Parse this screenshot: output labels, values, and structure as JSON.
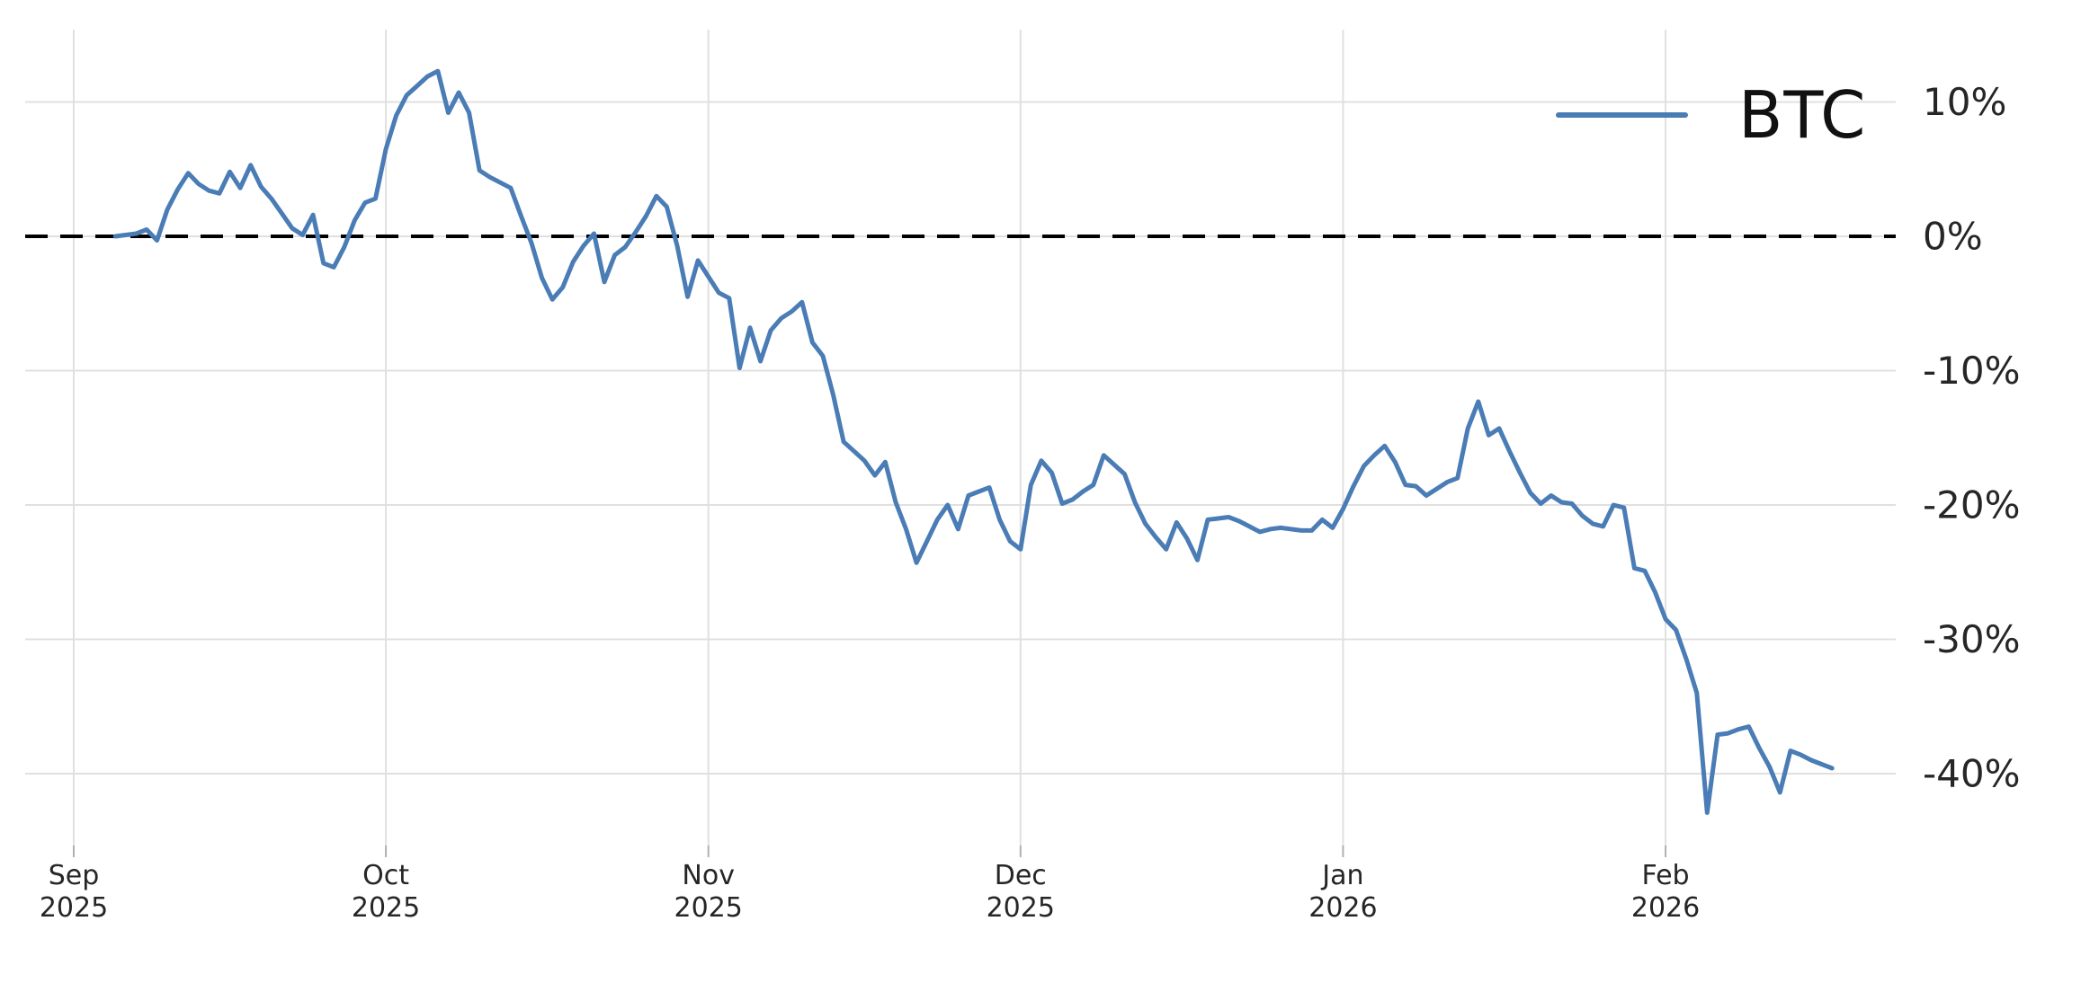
{
  "page": {
    "background": "#ffffff"
  },
  "legend": {
    "label": "BTC",
    "line_color": "#4a7cb5"
  },
  "axes": {
    "x_ticks": [
      {
        "date": "2025-09-01",
        "line1": "Sep",
        "line2": "2025"
      },
      {
        "date": "2025-10-01",
        "line1": "Oct",
        "line2": "2025"
      },
      {
        "date": "2025-11-01",
        "line1": "Nov",
        "line2": "2025"
      },
      {
        "date": "2025-12-01",
        "line1": "Dec",
        "line2": "2025"
      },
      {
        "date": "2026-01-01",
        "line1": "Jan",
        "line2": "2026"
      },
      {
        "date": "2026-02-01",
        "line1": "Feb",
        "line2": "2026"
      }
    ],
    "y_ticks": [
      {
        "label": "10%",
        "value": 10
      },
      {
        "label": "0%",
        "value": 0
      },
      {
        "label": "-10%",
        "value": -10
      },
      {
        "label": "-20%",
        "value": -20
      },
      {
        "label": "-30%",
        "value": -30
      },
      {
        "label": "-40%",
        "value": -40
      }
    ],
    "grid_color": "#e0e0e0",
    "tick_color": "#b0b0b0",
    "label_color": "#262626"
  },
  "chart_data": {
    "type": "line",
    "title": "",
    "xlabel": "",
    "ylabel": "",
    "unit": "percent",
    "ylim": [
      -45.3,
      15.6
    ],
    "x_range": [
      "2025-09-01",
      "2026-02-23"
    ],
    "grid": true,
    "legend_position": "upper right",
    "zero_line": {
      "value": 0,
      "style": "dashed",
      "color": "#000000"
    },
    "series": [
      {
        "name": "BTC",
        "color": "#4a7cb5",
        "start_date": "2025-09-05",
        "end_date": "2026-02-17",
        "frequency": "daily",
        "values": [
          0.0,
          0.1,
          0.2,
          0.5,
          -0.3,
          2.0,
          3.5,
          4.7,
          3.9,
          3.4,
          3.2,
          4.8,
          3.6,
          5.3,
          3.7,
          2.8,
          1.7,
          0.6,
          0.1,
          1.6,
          -2.0,
          -2.3,
          -0.8,
          1.2,
          2.5,
          2.8,
          6.5,
          9.0,
          10.5,
          11.2,
          11.9,
          12.3,
          9.2,
          10.7,
          9.2,
          4.9,
          4.4,
          4.0,
          3.6,
          1.5,
          -0.5,
          -3.1,
          -4.7,
          -3.8,
          -1.9,
          -0.7,
          0.2,
          -3.4,
          -1.4,
          -0.8,
          0.3,
          1.5,
          3.0,
          2.2,
          -0.7,
          -4.5,
          -1.8,
          -3.0,
          -4.2,
          -4.6,
          -9.8,
          -6.8,
          -9.3,
          -7.0,
          -6.1,
          -5.6,
          -4.9,
          -7.9,
          -8.9,
          -11.8,
          -15.3,
          -16.0,
          -16.7,
          -17.8,
          -16.8,
          -19.8,
          -21.8,
          -24.3,
          -22.7,
          -21.1,
          -20.0,
          -21.8,
          -19.3,
          -19.0,
          -18.7,
          -21.1,
          -22.7,
          -23.3,
          -18.5,
          -16.7,
          -17.6,
          -19.9,
          -19.6,
          -19.0,
          -18.5,
          -16.3,
          -17.0,
          -17.7,
          -19.8,
          -21.4,
          -22.4,
          -23.3,
          -21.3,
          -22.5,
          -24.1,
          -21.1,
          -21.0,
          -20.9,
          -21.2,
          -21.6,
          -22.0,
          -21.8,
          -21.7,
          -21.8,
          -21.9,
          -21.9,
          -21.1,
          -21.7,
          -20.3,
          -18.6,
          -17.1,
          -16.3,
          -15.6,
          -16.8,
          -18.5,
          -18.6,
          -19.3,
          -18.8,
          -18.3,
          -18.0,
          -14.3,
          -12.3,
          -14.8,
          -14.3,
          -16.0,
          -17.6,
          -19.1,
          -19.9,
          -19.3,
          -19.8,
          -19.9,
          -20.8,
          -21.4,
          -21.6,
          -20.0,
          -20.2,
          -24.7,
          -24.9,
          -26.5,
          -28.5,
          -29.3,
          -31.5,
          -34.0,
          -42.9,
          -37.1,
          -37.0,
          -36.7,
          -36.5,
          -38.1,
          -39.5,
          -41.4,
          -38.3,
          -38.6,
          -39.0,
          -39.3,
          -39.6
        ]
      }
    ]
  }
}
